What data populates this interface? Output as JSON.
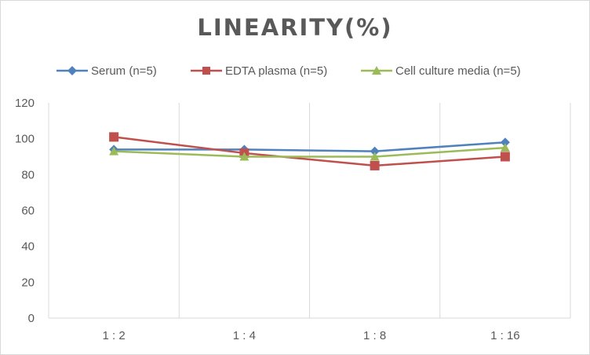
{
  "chart_data": {
    "type": "line",
    "title": "LINEARITY(%)",
    "xlabel": "",
    "ylabel": "",
    "categories": [
      "1:2",
      "1:4",
      "1:8",
      "1:16"
    ],
    "ylim": [
      0,
      120
    ],
    "yticks": [
      0,
      20,
      40,
      60,
      80,
      100,
      120
    ],
    "grid": "vertical",
    "legend": "top",
    "series": [
      {
        "name": "Serum (n=5)",
        "values": [
          94,
          94,
          93,
          98
        ],
        "color": "#4f81bd",
        "marker": "diamond"
      },
      {
        "name": "EDTA plasma (n=5)",
        "values": [
          101,
          92,
          85,
          90
        ],
        "color": "#c0504d",
        "marker": "square"
      },
      {
        "name": "Cell culture media (n=5)",
        "values": [
          93,
          90,
          90,
          95
        ],
        "color": "#9bbb59",
        "marker": "triangle"
      }
    ]
  }
}
